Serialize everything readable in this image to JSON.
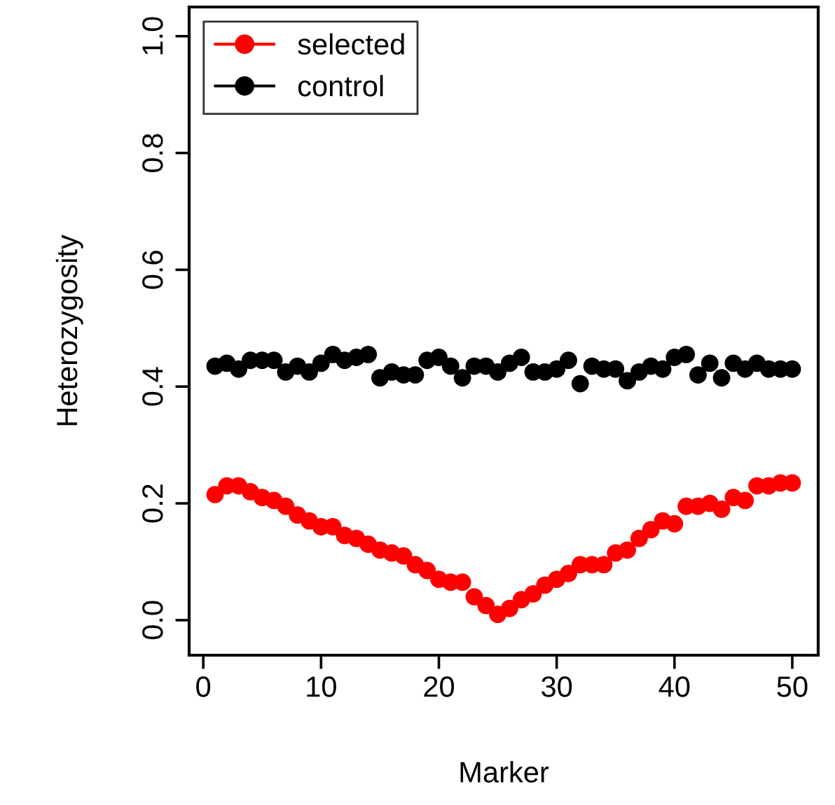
{
  "chart_data": {
    "type": "scatter",
    "xlabel": "Marker",
    "ylabel": "Heterozygosity",
    "x": [
      1,
      2,
      3,
      4,
      5,
      6,
      7,
      8,
      9,
      10,
      11,
      12,
      13,
      14,
      15,
      16,
      17,
      18,
      19,
      20,
      21,
      22,
      23,
      24,
      25,
      26,
      27,
      28,
      29,
      30,
      31,
      32,
      33,
      34,
      35,
      36,
      37,
      38,
      39,
      40,
      41,
      42,
      43,
      44,
      45,
      46,
      47,
      48,
      49,
      50
    ],
    "series": [
      {
        "name": "selected",
        "color": "#ff0000",
        "values": [
          0.215,
          0.23,
          0.23,
          0.22,
          0.21,
          0.205,
          0.195,
          0.18,
          0.17,
          0.16,
          0.16,
          0.145,
          0.14,
          0.13,
          0.12,
          0.115,
          0.11,
          0.095,
          0.085,
          0.07,
          0.065,
          0.065,
          0.04,
          0.025,
          0.01,
          0.02,
          0.035,
          0.045,
          0.06,
          0.07,
          0.08,
          0.095,
          0.095,
          0.095,
          0.115,
          0.12,
          0.14,
          0.155,
          0.17,
          0.165,
          0.195,
          0.195,
          0.2,
          0.19,
          0.21,
          0.205,
          0.23,
          0.23,
          0.235,
          0.235
        ]
      },
      {
        "name": "control",
        "color": "#000000",
        "values": [
          0.435,
          0.44,
          0.43,
          0.445,
          0.445,
          0.445,
          0.425,
          0.435,
          0.425,
          0.44,
          0.455,
          0.445,
          0.45,
          0.455,
          0.415,
          0.425,
          0.42,
          0.42,
          0.445,
          0.45,
          0.435,
          0.415,
          0.435,
          0.435,
          0.425,
          0.44,
          0.45,
          0.425,
          0.425,
          0.43,
          0.445,
          0.405,
          0.435,
          0.43,
          0.43,
          0.41,
          0.425,
          0.435,
          0.43,
          0.45,
          0.455,
          0.42,
          0.44,
          0.415,
          0.44,
          0.43,
          0.44,
          0.43,
          0.43,
          0.43
        ]
      }
    ],
    "xlim": [
      -1.2,
      52.2
    ],
    "ylim": [
      -0.06,
      1.05
    ],
    "xticks": [
      0,
      10,
      20,
      30,
      40,
      50
    ],
    "yticks": [
      {
        "value": 0,
        "label": "0.0"
      },
      {
        "value": 0.2,
        "label": "0.2"
      },
      {
        "value": 0.4,
        "label": "0.4"
      },
      {
        "value": 0.6,
        "label": "0.6"
      },
      {
        "value": 0.8,
        "label": "0.8"
      },
      {
        "value": 1,
        "label": "1.0"
      }
    ],
    "legend": "top left",
    "marker": "circle",
    "grid": false
  }
}
